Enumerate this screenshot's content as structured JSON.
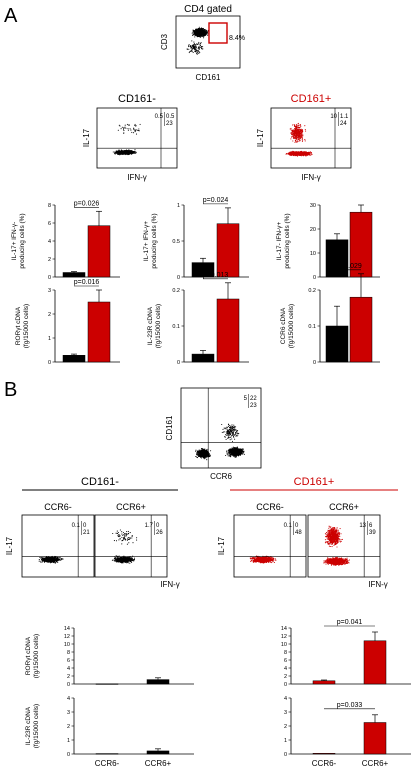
{
  "panels": {
    "a": "A",
    "b": "B"
  },
  "gate": {
    "title": "CD4 gated",
    "percent": "8.4%",
    "xlabel": "CD161",
    "ylabel": "CD3"
  },
  "flow_a": [
    {
      "title": "CD161-",
      "color": "#000000",
      "q": [
        "0.5",
        "0.5",
        "23"
      ],
      "xlabel": "IFN-γ",
      "ylabel": "IL-17"
    },
    {
      "title": "CD161+",
      "color": "#cc0000",
      "q": [
        "10",
        "1.1",
        "24"
      ],
      "xlabel": "IFN-γ",
      "ylabel": "IL-17"
    }
  ],
  "flow_b_top": {
    "q": [
      "5",
      "22",
      "23"
    ],
    "xlabel": "CCR6",
    "ylabel": "CD161"
  },
  "groups_b": [
    {
      "title": "CD161-",
      "color": "#000000",
      "line_color": "#000000"
    },
    {
      "title": "CD161+",
      "color": "#cc0000",
      "line_color": "#cc0000"
    }
  ],
  "flow_b": [
    {
      "title": "CCR6-",
      "q": [
        "0.1",
        "0",
        "21"
      ]
    },
    {
      "title": "CCR6+",
      "q": [
        "1.7",
        "0",
        "26"
      ]
    },
    {
      "title": "CCR6-",
      "q": [
        "0.1",
        "0",
        "48"
      ]
    },
    {
      "title": "CCR6+",
      "q": [
        "13",
        "6",
        "39"
      ]
    }
  ],
  "flow_b_labels": {
    "xlabel": "IFN-γ",
    "ylabel": "IL-17"
  },
  "colors": {
    "black": "#000000",
    "red": "#cc0000"
  },
  "chart_data": [
    {
      "type": "bar",
      "panel": "A",
      "ylabel": "IL-17+ IFN-γ- producing cells (%)",
      "ylim": [
        0,
        8
      ],
      "ticks": [
        0,
        2,
        4,
        6,
        8
      ],
      "values": [
        0.5,
        5.7
      ],
      "errors": [
        0.1,
        1.6
      ],
      "pvalue": "p=0.026"
    },
    {
      "type": "bar",
      "panel": "A",
      "ylabel": "IL-17+ IFN-γ+ producing cells (%)",
      "ylim": [
        0,
        1
      ],
      "ticks": [
        0,
        0.5,
        1
      ],
      "values": [
        0.2,
        0.74
      ],
      "errors": [
        0.06,
        0.22
      ],
      "pvalue": "p=0.024"
    },
    {
      "type": "bar",
      "panel": "A",
      "ylabel": "IL-17- IFN-γ+ producing cells (%)",
      "ylim": [
        0,
        30
      ],
      "ticks": [
        0,
        10,
        20,
        30
      ],
      "values": [
        15.5,
        27
      ],
      "errors": [
        2.5,
        3
      ],
      "pvalue": ""
    },
    {
      "type": "bar",
      "panel": "A",
      "ylabel": "RORγt cDNA (fg/15000 cells)",
      "ylim": [
        0,
        3
      ],
      "ticks": [
        0,
        1,
        2,
        3
      ],
      "values": [
        0.28,
        2.5
      ],
      "errors": [
        0.05,
        0.5
      ],
      "pvalue": "p=0.016"
    },
    {
      "type": "bar",
      "panel": "A",
      "ylabel": "IL-23R cDNA (fg/15000 cells)",
      "ylim": [
        0,
        0.2
      ],
      "ticks": [
        0,
        0.1,
        0.2
      ],
      "values": [
        0.022,
        0.175
      ],
      "errors": [
        0.01,
        0.045
      ],
      "pvalue": "p=0.013"
    },
    {
      "type": "bar",
      "panel": "A",
      "ylabel": "CCR6 cDNA (fg/15000 cells)",
      "ylim": [
        0,
        0.2
      ],
      "ticks": [
        0,
        0.1,
        0.2
      ],
      "values": [
        0.1,
        0.18
      ],
      "errors": [
        0.055,
        0.065
      ],
      "pvalue": "p=0.029"
    },
    {
      "type": "bar",
      "panel": "B",
      "ylabel": "RORγt cDNA (fg/15000 cells)",
      "ylim": [
        0,
        14
      ],
      "ticks": [
        0,
        2,
        4,
        6,
        8,
        10,
        12,
        14
      ],
      "categories": [
        "CCR6-",
        "CCR6+"
      ],
      "values": [
        0.05,
        1.1
      ],
      "errors": [
        0,
        0.45
      ],
      "pvalue": ""
    },
    {
      "type": "bar",
      "panel": "B",
      "ylabel": "RORγt cDNA (fg/15000 cells)",
      "ylim": [
        0,
        14
      ],
      "ticks": [
        0,
        2,
        4,
        6,
        8,
        10,
        12,
        14
      ],
      "categories": [
        "CCR6-",
        "CCR6+"
      ],
      "values": [
        0.8,
        10.8
      ],
      "errors": [
        0.2,
        2.2
      ],
      "pvalue": "p=0.041"
    },
    {
      "type": "bar",
      "panel": "B",
      "ylabel": "IL-23R cDNA (fg/15000 cells)",
      "ylim": [
        0,
        4
      ],
      "ticks": [
        0,
        1,
        2,
        3,
        4
      ],
      "categories": [
        "CCR6-",
        "CCR6+"
      ],
      "values": [
        0.03,
        0.22
      ],
      "errors": [
        0,
        0.15
      ],
      "pvalue": ""
    },
    {
      "type": "bar",
      "panel": "B",
      "ylabel": "IL-23R cDNA (fg/15000 cells)",
      "ylim": [
        0,
        4
      ],
      "ticks": [
        0,
        1,
        2,
        3,
        4
      ],
      "categories": [
        "CCR6-",
        "CCR6+"
      ],
      "values": [
        0.05,
        2.25
      ],
      "errors": [
        0,
        0.55
      ],
      "pvalue": "p=0.033"
    }
  ]
}
